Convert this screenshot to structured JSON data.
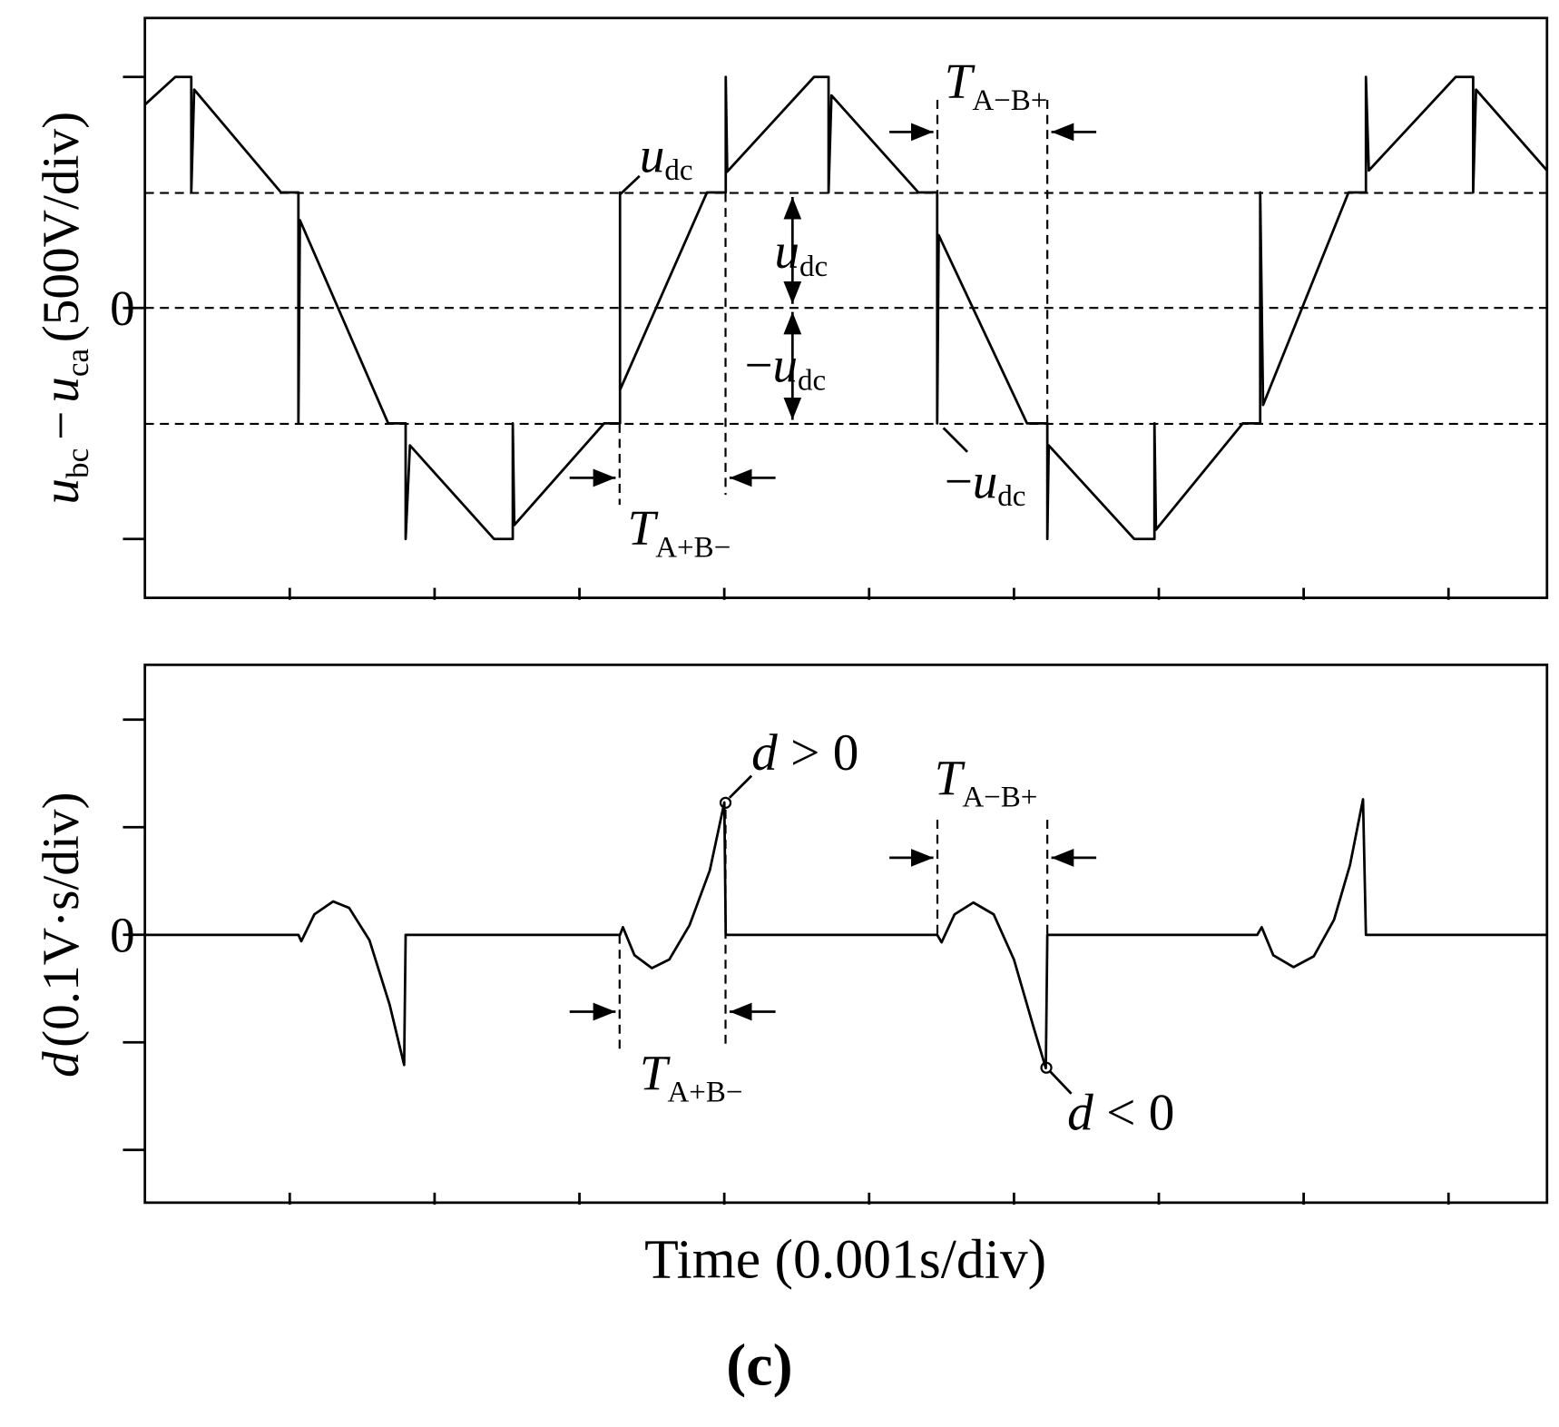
{
  "chart_data": [
    {
      "type": "line",
      "ylabel": {
        "symbol": "u",
        "sub": "bc",
        "operator": "−",
        "symbol2": "u",
        "sub2": "ca",
        "unit": "(500V/div)"
      },
      "x": [
        0,
        0.21,
        0.32,
        0.32,
        0.34,
        0.94,
        1.06,
        1.06,
        1.07,
        1.68,
        1.8,
        1.8,
        1.83,
        2.41,
        2.54,
        2.54,
        2.55,
        3.17,
        3.28,
        3.28,
        3.28,
        3.88,
        4.01,
        4.01,
        4.02,
        4.62,
        4.72,
        4.72,
        4.74,
        5.34,
        5.47,
        5.47,
        5.48,
        6.09,
        6.23,
        6.23,
        6.24,
        6.83,
        6.97,
        6.97,
        6.98,
        7.58,
        7.7,
        7.7,
        7.72,
        8.31,
        8.43,
        8.43,
        8.45,
        9.05,
        9.17,
        9.17,
        9.19,
        9.68
      ],
      "values": [
        1.76,
        2.0,
        2.0,
        1.0,
        1.89,
        1.0,
        1.0,
        -1.0,
        0.76,
        -1.0,
        -1.0,
        -2.0,
        -1.19,
        -2.0,
        -2.0,
        -1.0,
        -1.88,
        -1.0,
        -1.0,
        1.0,
        -0.71,
        1.0,
        1.0,
        2.0,
        1.18,
        2.0,
        2.0,
        1.0,
        1.84,
        1.0,
        1.0,
        -1.0,
        0.63,
        -1.0,
        -1.0,
        -2.0,
        -1.19,
        -2.0,
        -2.0,
        -1.0,
        -1.92,
        -1.0,
        -1.0,
        1.0,
        -0.84,
        1.0,
        1.0,
        2.0,
        1.19,
        2.0,
        2.0,
        1.0,
        1.89,
        1.19
      ],
      "color": "#000000",
      "xlim": [
        0,
        9.68
      ],
      "ylim": [
        -2.51,
        2.51
      ],
      "xticks": [
        {
          "value": 1,
          "label": null
        },
        {
          "value": 2,
          "label": null
        },
        {
          "value": 3,
          "label": null
        },
        {
          "value": 4,
          "label": null
        },
        {
          "value": 5,
          "label": null
        },
        {
          "value": 6,
          "label": null
        },
        {
          "value": 7,
          "label": null
        },
        {
          "value": 8,
          "label": null
        },
        {
          "value": 9,
          "label": null
        }
      ],
      "yticks": [
        {
          "value": -2,
          "label": null
        },
        0,
        {
          "value": 2,
          "label": null
        }
      ],
      "annotations": [
        {
          "symbol": "u",
          "sub": "dc"
        },
        {
          "symbol": "u",
          "sub": "dc"
        },
        {
          "prefix": "−",
          "symbol": "u",
          "sub": "dc"
        },
        {
          "symbol": "T",
          "sub": "A+B−"
        },
        {
          "symbol": "T",
          "sub": "A−B+"
        },
        {
          "prefix": "−",
          "symbol": "u",
          "sub": "dc"
        }
      ]
    },
    {
      "type": "line",
      "ylabel": {
        "symbol": "d",
        "unit": "(0.1V·s/div)"
      },
      "xlabel": "Time (0.001s/div)",
      "x": [
        0,
        1.06,
        1.08,
        1.17,
        1.3,
        1.41,
        1.55,
        1.69,
        1.79,
        1.8,
        3.28,
        3.3,
        3.38,
        3.5,
        3.62,
        3.76,
        3.9,
        4.0,
        4.01,
        5.47,
        5.5,
        5.59,
        5.72,
        5.86,
        6.0,
        6.14,
        6.22,
        6.23,
        7.68,
        7.71,
        7.79,
        7.93,
        8.07,
        8.21,
        8.32,
        8.41,
        8.43,
        9.68
      ],
      "values": [
        0,
        0,
        -0.06,
        0.19,
        0.31,
        0.25,
        -0.05,
        -0.65,
        -1.21,
        0,
        0,
        0.07,
        -0.19,
        -0.31,
        -0.23,
        0.09,
        0.6,
        1.23,
        0,
        0,
        -0.07,
        0.19,
        0.3,
        0.19,
        -0.23,
        -0.88,
        -1.24,
        0,
        0,
        0.07,
        -0.19,
        -0.3,
        -0.2,
        0.14,
        0.65,
        1.26,
        0,
        0
      ],
      "color": "#000000",
      "xlim": [
        0,
        9.68
      ],
      "ylim": [
        -2.49,
        2.51
      ],
      "xticks": [
        {
          "value": 1,
          "label": null
        },
        {
          "value": 2,
          "label": null
        },
        {
          "value": 3,
          "label": null
        },
        {
          "value": 4,
          "label": null
        },
        {
          "value": 5,
          "label": null
        },
        {
          "value": 6,
          "label": null
        },
        {
          "value": 7,
          "label": null
        },
        {
          "value": 8,
          "label": null
        },
        {
          "value": 9,
          "label": null
        }
      ],
      "yticks": [
        {
          "value": -2,
          "label": null
        },
        {
          "value": -1,
          "label": null
        },
        0,
        {
          "value": 1,
          "label": null
        },
        {
          "value": 2,
          "label": null
        }
      ],
      "annotations": [
        {
          "symbol": "T",
          "sub": "A−B+"
        },
        {
          "symbol": "T",
          "sub": "A+B−"
        },
        {
          "symbol": "d",
          "text": "> 0"
        },
        {
          "symbol": "d",
          "text": "< 0"
        }
      ]
    }
  ],
  "caption": "(c)"
}
